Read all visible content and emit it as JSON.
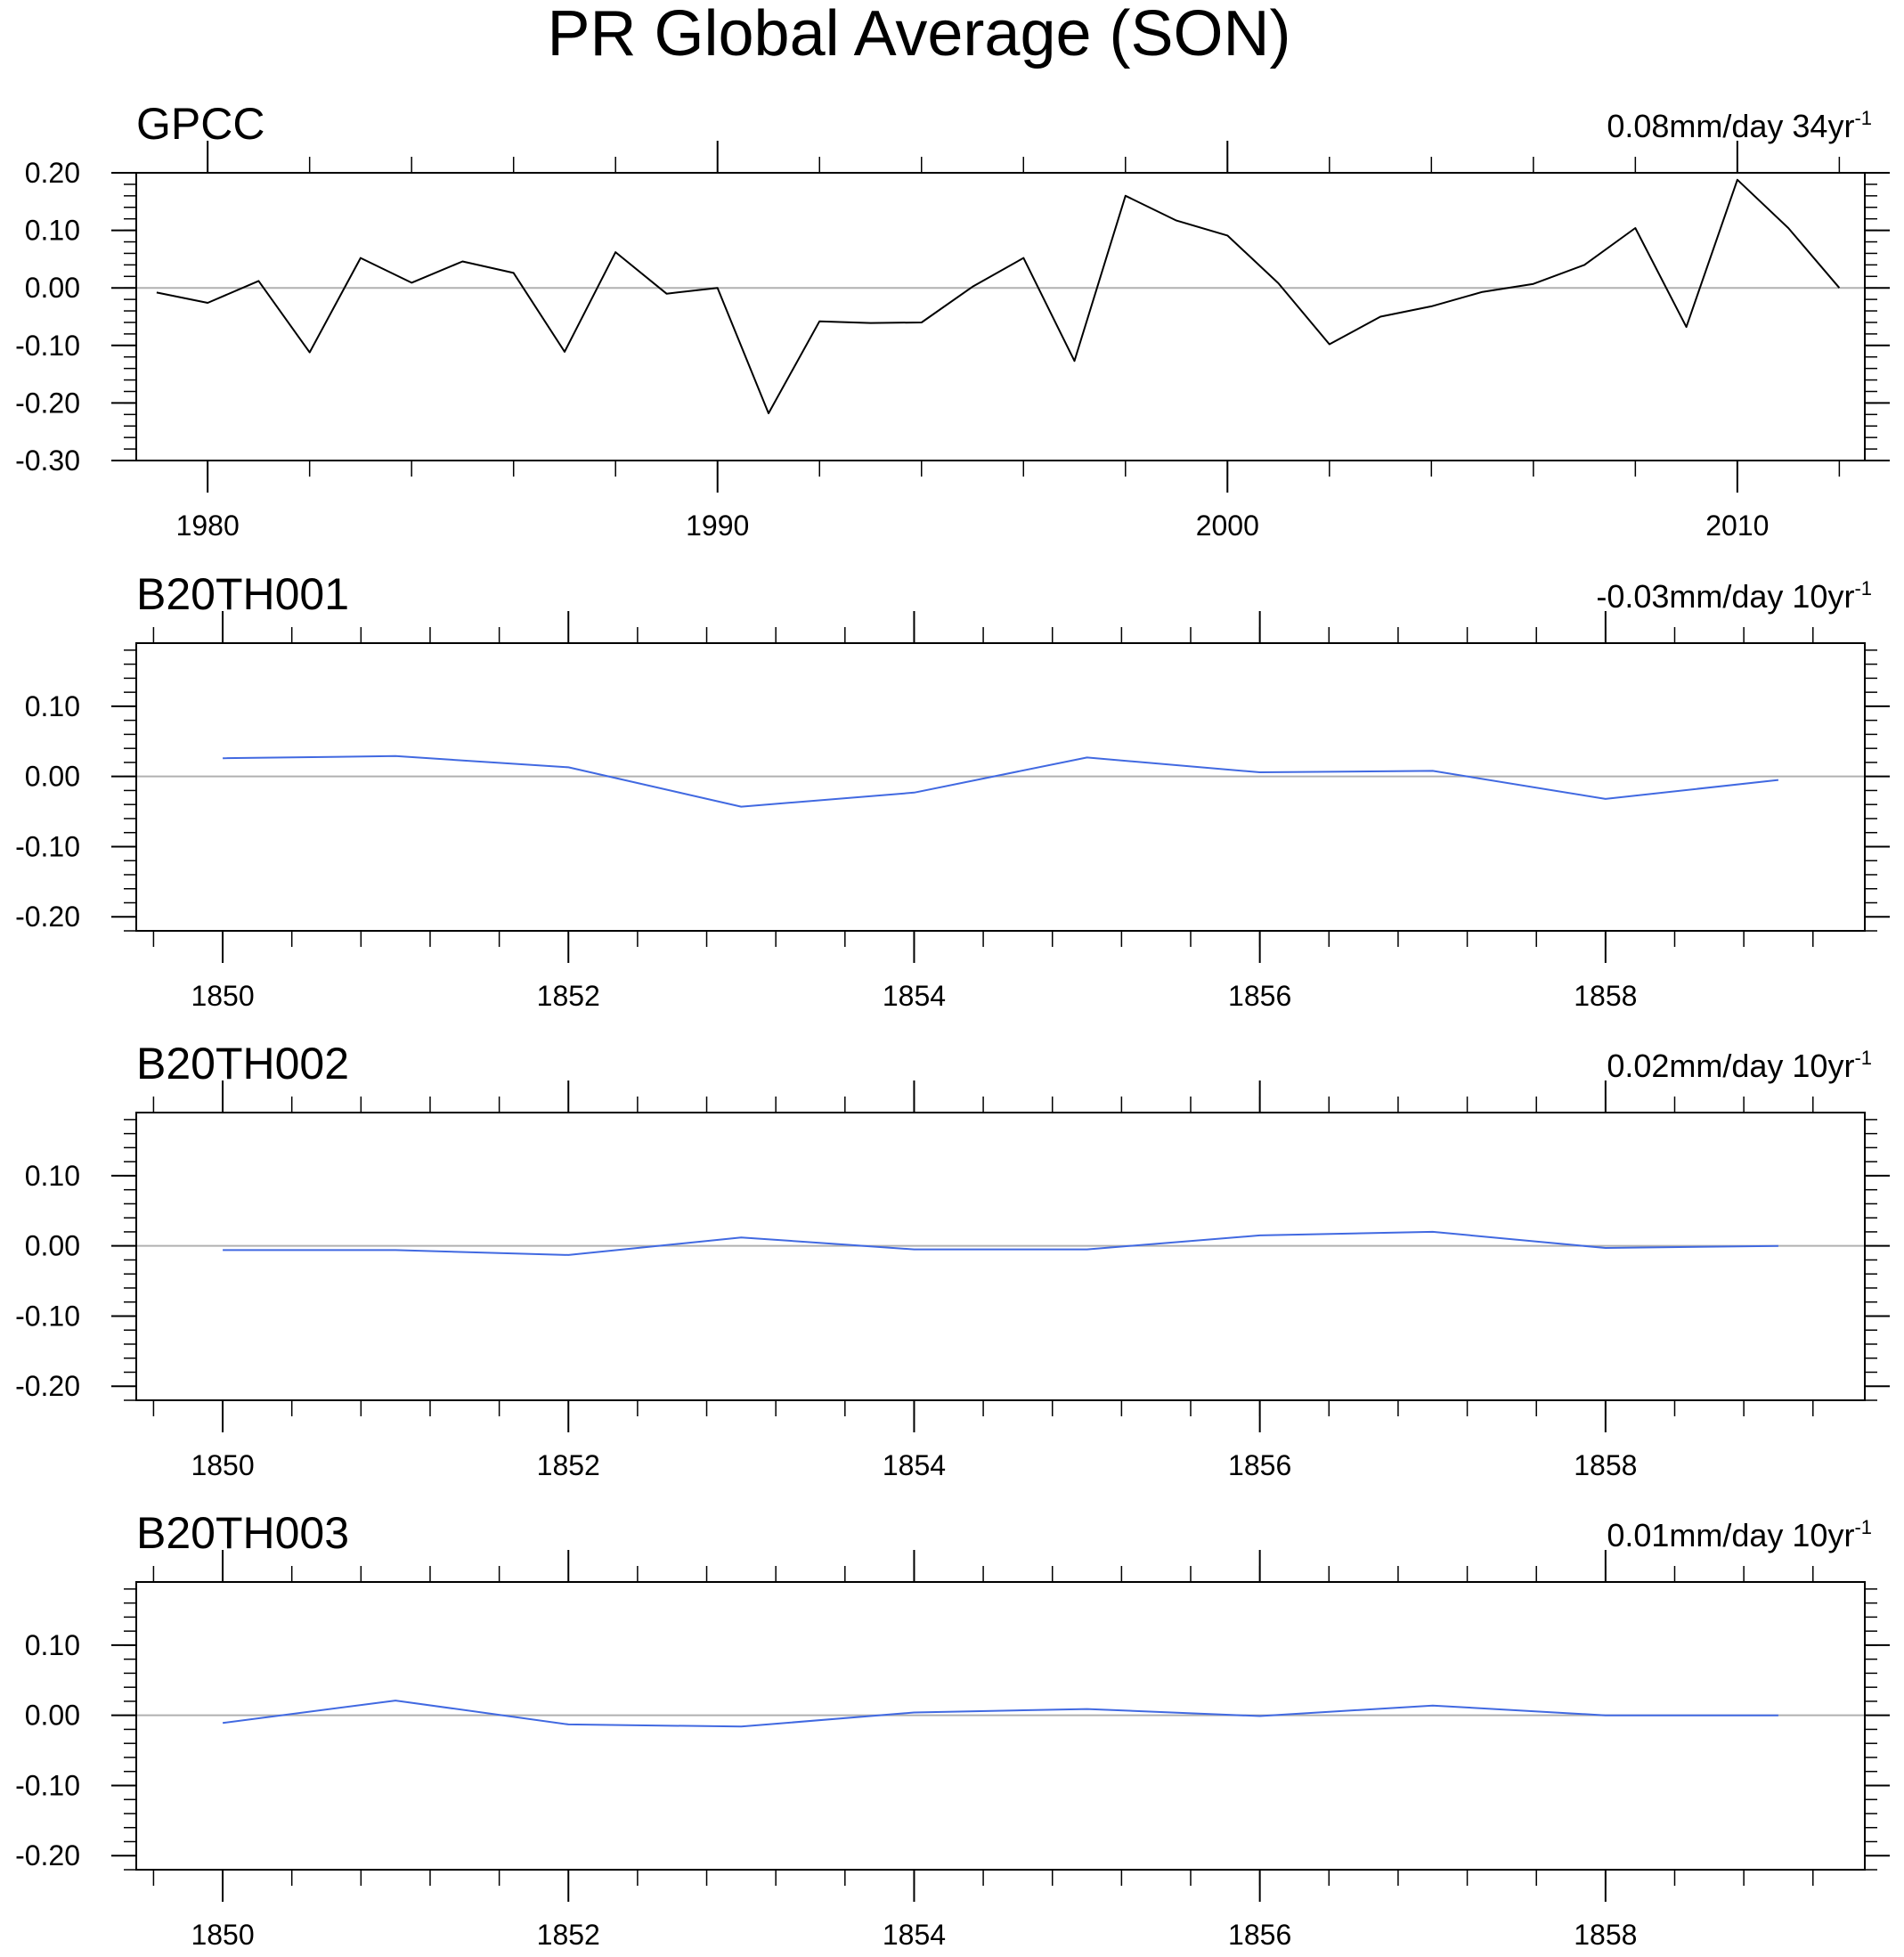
{
  "title": "PR Global Average (SON)",
  "colors": {
    "observed": "#000000",
    "model": "#4169E1",
    "zero_line": "#b0b0b0",
    "frame": "#000000"
  },
  "chart_data": [
    {
      "type": "line",
      "title": "GPCC",
      "trend_text": "0.08mm/day 34yr",
      "trend_exp": "-1",
      "xlabel": "",
      "ylabel": "",
      "xlim": [
        1978.6,
        2012.5
      ],
      "ylim": [
        -0.3,
        0.2
      ],
      "xticks": [
        1980,
        1990,
        2000,
        2010
      ],
      "yticks": [
        -0.3,
        -0.2,
        -0.1,
        0.0,
        0.1,
        0.2
      ],
      "ytick_labels": [
        "-0.30",
        "-0.20",
        "-0.10",
        "0.00",
        "0.10",
        "0.20"
      ],
      "color": "#000000",
      "series": [
        {
          "name": "GPCC",
          "x": [
            1979,
            1980,
            1981,
            1982,
            1983,
            1984,
            1985,
            1986,
            1987,
            1988,
            1989,
            1990,
            1991,
            1992,
            1993,
            1994,
            1995,
            1996,
            1997,
            1998,
            1999,
            2000,
            2001,
            2002,
            2003,
            2004,
            2005,
            2006,
            2007,
            2008,
            2009,
            2010,
            2011,
            2012
          ],
          "y": [
            -0.008,
            -0.026,
            0.012,
            -0.112,
            0.052,
            0.009,
            0.046,
            0.026,
            -0.111,
            0.062,
            -0.01,
            0.0,
            -0.218,
            -0.058,
            -0.061,
            -0.06,
            0.002,
            0.052,
            -0.127,
            0.16,
            0.117,
            0.091,
            0.008,
            -0.098,
            -0.05,
            -0.032,
            -0.007,
            0.007,
            0.04,
            0.104,
            -0.068,
            0.188,
            0.104,
            0.0
          ]
        }
      ]
    },
    {
      "type": "line",
      "title": "B20TH001",
      "trend_text": "-0.03mm/day 10yr",
      "trend_exp": "-1",
      "xlabel": "",
      "ylabel": "",
      "xlim": [
        1849.5,
        1859.5
      ],
      "ylim": [
        -0.22,
        0.19
      ],
      "xticks": [
        1850,
        1852,
        1854,
        1856,
        1858
      ],
      "yticks": [
        -0.2,
        -0.1,
        0.0,
        0.1
      ],
      "ytick_labels": [
        "-0.20",
        "-0.10",
        "0.00",
        "0.10"
      ],
      "color": "#4169E1",
      "series": [
        {
          "name": "B20TH001",
          "x": [
            1850,
            1851,
            1852,
            1853,
            1854,
            1855,
            1856,
            1857,
            1858,
            1859
          ],
          "y": [
            0.026,
            0.029,
            0.013,
            -0.043,
            -0.023,
            0.027,
            0.006,
            0.008,
            -0.032,
            -0.005
          ]
        }
      ]
    },
    {
      "type": "line",
      "title": "B20TH002",
      "trend_text": "0.02mm/day 10yr",
      "trend_exp": "-1",
      "xlabel": "",
      "ylabel": "",
      "xlim": [
        1849.5,
        1859.5
      ],
      "ylim": [
        -0.22,
        0.19
      ],
      "xticks": [
        1850,
        1852,
        1854,
        1856,
        1858
      ],
      "yticks": [
        -0.2,
        -0.1,
        0.0,
        0.1
      ],
      "ytick_labels": [
        "-0.20",
        "-0.10",
        "0.00",
        "0.10"
      ],
      "color": "#4169E1",
      "series": [
        {
          "name": "B20TH002",
          "x": [
            1850,
            1851,
            1852,
            1853,
            1854,
            1855,
            1856,
            1857,
            1858,
            1859
          ],
          "y": [
            -0.006,
            -0.006,
            -0.013,
            0.012,
            -0.005,
            -0.005,
            0.015,
            0.02,
            -0.003,
            0.0
          ]
        }
      ]
    },
    {
      "type": "line",
      "title": "B20TH003",
      "trend_text": "0.01mm/day 10yr",
      "trend_exp": "-1",
      "xlabel": "",
      "ylabel": "",
      "xlim": [
        1849.5,
        1859.5
      ],
      "ylim": [
        -0.22,
        0.19
      ],
      "xticks": [
        1850,
        1852,
        1854,
        1856,
        1858
      ],
      "yticks": [
        -0.2,
        -0.1,
        0.0,
        0.1
      ],
      "ytick_labels": [
        "-0.20",
        "-0.10",
        "0.00",
        "0.10"
      ],
      "color": "#4169E1",
      "series": [
        {
          "name": "B20TH003",
          "x": [
            1850,
            1851,
            1852,
            1853,
            1854,
            1855,
            1856,
            1857,
            1858,
            1859
          ],
          "y": [
            -0.011,
            0.021,
            -0.013,
            -0.016,
            0.004,
            0.009,
            -0.001,
            0.014,
            0.0,
            0.0
          ]
        }
      ]
    }
  ]
}
